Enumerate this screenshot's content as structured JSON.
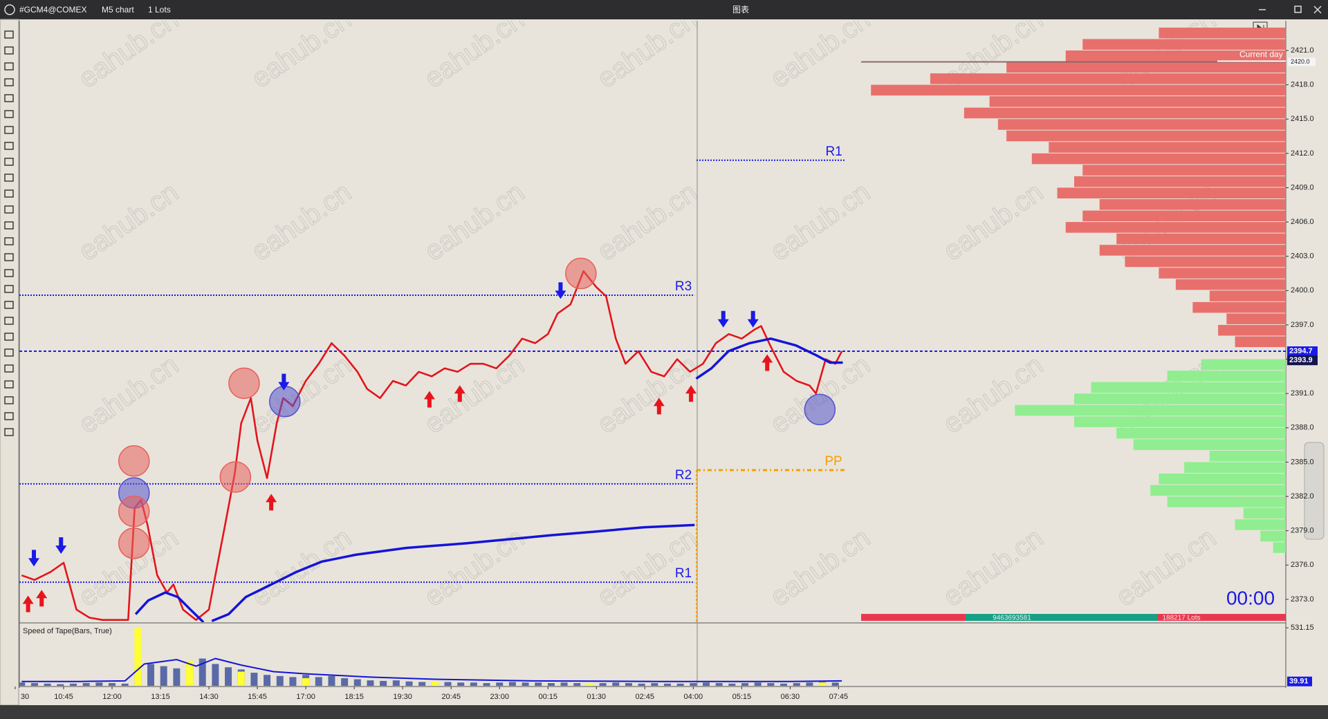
{
  "window": {
    "symbol": "#GCM4@COMEX",
    "timeframe": "M5 chart",
    "lots": "1 Lots",
    "title": "图表"
  },
  "watermark": "eahub.cn",
  "chart_data": {
    "type": "line",
    "xlim": [
      1.3,
      393.5
    ],
    "xticks": [
      {
        "value": 0,
        "label": "30"
      },
      {
        "value": 15,
        "label": "10:45"
      },
      {
        "value": 30,
        "label": "12:00"
      },
      {
        "value": 45,
        "label": "13:15"
      },
      {
        "value": 60,
        "label": "14:30"
      },
      {
        "value": 75,
        "label": "15:45"
      },
      {
        "value": 90,
        "label": "17:00"
      },
      {
        "value": 105,
        "label": "18:15"
      },
      {
        "value": 120,
        "label": "19:30"
      },
      {
        "value": 135,
        "label": "20:45"
      },
      {
        "value": 150,
        "label": "23:00"
      },
      {
        "value": 165,
        "label": "00:15"
      },
      {
        "value": 180,
        "label": "01:30"
      },
      {
        "value": 195,
        "label": "02:45"
      },
      {
        "value": 210,
        "label": "04:00"
      },
      {
        "value": 225,
        "label": "05:15"
      },
      {
        "value": 240,
        "label": "06:30"
      },
      {
        "value": 255,
        "label": "07:45"
      }
    ],
    "ylim": [
      2371.0,
      2423.6
    ],
    "yticks": [
      {
        "value": 2373,
        "label": "2373.0"
      },
      {
        "value": 2376,
        "label": "2376.0"
      },
      {
        "value": 2379,
        "label": "2379.0"
      },
      {
        "value": 2382,
        "label": "2382.0"
      },
      {
        "value": 2385,
        "label": "2385.0"
      },
      {
        "value": 2388,
        "label": "2388.0"
      },
      {
        "value": 2391,
        "label": "2391.0"
      },
      {
        "value": 2394,
        "label": "2394.0"
      },
      {
        "value": 2397,
        "label": "2397.0"
      },
      {
        "value": 2400,
        "label": "2400.0"
      },
      {
        "value": 2403,
        "label": "2403.0"
      },
      {
        "value": 2406,
        "label": "2406.0"
      },
      {
        "value": 2409,
        "label": "2409.0"
      },
      {
        "value": 2412,
        "label": "2412.0"
      },
      {
        "value": 2415,
        "label": "2415.0"
      },
      {
        "value": 2418,
        "label": "2418.0"
      },
      {
        "value": 2421,
        "label": "2421.0"
      }
    ],
    "grid": false,
    "series": [
      {
        "color": "#e3141c",
        "x": [
          2,
          6,
          11,
          15,
          19,
          23,
          27,
          31,
          35,
          37,
          39,
          41,
          44,
          47,
          49,
          52,
          56,
          60,
          62,
          65,
          68,
          70,
          73,
          75,
          78,
          81,
          83,
          86,
          90,
          94,
          98,
          102,
          106,
          109,
          113,
          117,
          121,
          125,
          129,
          133,
          137,
          141,
          145,
          149,
          153,
          157,
          161,
          165,
          168,
          172,
          176,
          180,
          183,
          186,
          189,
          193,
          197,
          201,
          205,
          209,
          213,
          217,
          221,
          225,
          229,
          231,
          234,
          238,
          242,
          246,
          248,
          251,
          254,
          256
        ],
        "values": [
          2375.1,
          2374.7,
          2375.4,
          2376.2,
          2372.1,
          2371.4,
          2371.2,
          2371.2,
          2371.2,
          2381.0,
          2381.7,
          2379.5,
          2375.1,
          2373.6,
          2374.3,
          2372.1,
          2371.2,
          2372.1,
          2375.1,
          2379.5,
          2384.0,
          2388.4,
          2390.6,
          2386.9,
          2383.6,
          2388.4,
          2390.6,
          2389.9,
          2392.1,
          2393.6,
          2395.4,
          2394.3,
          2392.9,
          2391.4,
          2390.6,
          2392.1,
          2391.7,
          2392.9,
          2392.5,
          2393.2,
          2392.9,
          2393.6,
          2393.6,
          2393.2,
          2394.3,
          2395.8,
          2395.4,
          2396.2,
          2398.0,
          2398.8,
          2401.7,
          2400.3,
          2399.5,
          2395.8,
          2393.6,
          2394.7,
          2392.9,
          2392.5,
          2394.0,
          2392.9,
          2393.6,
          2395.4,
          2396.2,
          2395.8,
          2396.6,
          2396.9,
          2395.1,
          2392.9,
          2392.1,
          2391.7,
          2391.0,
          2394.0,
          2393.6,
          2394.7
        ]
      },
      {
        "color": "#1414d8",
        "x": [
          37.3,
          41.2,
          46.5,
          50.4,
          54.3,
          58.3,
          null,
          60.9,
          66.1,
          71.4,
          79.3,
          87.1,
          95.0,
          105.5,
          121.2,
          139.6,
          165.8,
          178.9,
          194.6,
          210.4,
          null,
          210.9,
          215.6,
          220.9,
          227.4,
          234.0,
          241.8,
          248.4,
          252.3,
          256.3
        ],
        "values": [
          2371.7,
          2372.9,
          2373.6,
          2373.2,
          2372.1,
          2371.0,
          null,
          2371.1,
          2371.7,
          2373.2,
          2374.3,
          2375.4,
          2376.3,
          2376.9,
          2377.5,
          2377.9,
          2378.6,
          2378.9,
          2379.3,
          2379.5,
          null,
          2392.3,
          2393.2,
          2394.7,
          2395.4,
          2395.8,
          2395.2,
          2394.3,
          2393.7,
          2393.7
        ]
      }
    ],
    "levels": [
      {
        "label": "R3",
        "value": 2399.6,
        "x": [
          1.3,
          210.4
        ],
        "color": "#1a1ae6"
      },
      {
        "label": "R2",
        "value": 2383.1,
        "x": [
          1.3,
          210.4
        ],
        "color": "#1a1ae6"
      },
      {
        "label": "R1",
        "value": 2374.5,
        "x": [
          1.3,
          210.4
        ],
        "color": "#1a1ae6"
      },
      {
        "label": "R1",
        "value": 2411.4,
        "x": [
          211,
          257
        ],
        "color": "#1a1ae6"
      },
      {
        "label": "PP",
        "value": 2384.3,
        "x": [
          211,
          257
        ],
        "color": "#f5a000"
      }
    ],
    "current_prices": [
      {
        "value": 2394.7,
        "color": "#1a1ae6"
      },
      {
        "value": 2393.9,
        "color": "#141450"
      }
    ],
    "current_day": {
      "label": "Current day",
      "x": [
        262,
        393.5
      ],
      "tick": {
        "value": 2420,
        "label": "2420.0"
      }
    },
    "up_arrows": {
      "color": "#e8141c",
      "x": [
        4.0,
        8.2,
        79.3,
        128.3,
        137.7,
        199.4,
        209.3,
        232.9
      ],
      "values": [
        2372.6,
        2373.1,
        2381.5,
        2390.5,
        2391.0,
        2389.9,
        2391.0,
        2393.7
      ]
    },
    "down_arrows": {
      "color": "#1a1ae6",
      "x": [
        5.8,
        14.2,
        83.2,
        168.9,
        219.3,
        228.5
      ],
      "values": [
        2376.6,
        2377.7,
        2392.0,
        2400.0,
        2397.5,
        2397.5
      ]
    },
    "circles": {
      "x": [
        36.8,
        36.8,
        36.8,
        36.8,
        68.2,
        70.9,
        83.5,
        175.2,
        249.2
      ],
      "values": [
        2385.1,
        2382.3,
        2380.7,
        2377.9,
        2383.7,
        2391.9,
        2390.3,
        2401.5,
        2389.6
      ],
      "colors": [
        "#e8605c",
        "#5555cc",
        "#e8605c",
        "#e8605c",
        "#e8605c",
        "#e8605c",
        "#5555cc",
        "#e8605c",
        "#5555cc"
      ]
    },
    "volume_profile": {
      "xlim": [
        0,
        500
      ],
      "sell": {
        "color": "#e8706c",
        "prices": [
          2422.5,
          2421.5,
          2420.5,
          2419.5,
          2418.5,
          2417.5,
          2416.5,
          2415.5,
          2414.5,
          2413.5,
          2412.5,
          2411.5,
          2410.5,
          2409.5,
          2408.5,
          2407.5,
          2406.5,
          2405.5,
          2404.5,
          2403.5,
          2402.5,
          2401.5,
          2400.5,
          2399.5,
          2398.5,
          2397.5,
          2396.5,
          2395.5
        ],
        "values": [
          150,
          240,
          260,
          330,
          420,
          490,
          350,
          380,
          340,
          330,
          280,
          300,
          240,
          250,
          270,
          220,
          240,
          260,
          200,
          220,
          190,
          150,
          130,
          90,
          110,
          70,
          80,
          60
        ]
      },
      "buy": {
        "color": "#90ee90",
        "prices": [
          2393.5,
          2392.5,
          2391.5,
          2390.5,
          2389.5,
          2388.5,
          2387.5,
          2386.5,
          2385.5,
          2384.5,
          2383.5,
          2382.5,
          2381.5,
          2380.5,
          2379.5,
          2378.5,
          2377.5
        ],
        "values": [
          100,
          140,
          230,
          250,
          320,
          250,
          200,
          180,
          90,
          120,
          150,
          160,
          140,
          50,
          60,
          30,
          15
        ]
      }
    },
    "timer": "00:00",
    "profile_footer": {
      "left": "9463693581",
      "right": "188217 Lots"
    },
    "indicator": {
      "title": "Speed of Tape(Bars, True)",
      "ylim": [
        0,
        570
      ],
      "yticks": [
        531.15
      ],
      "current": 39.91,
      "series": [
        {
          "type": "bar",
          "color": "#5a6aa8",
          "x": [
            2,
            6,
            10,
            14,
            18,
            22,
            26,
            30,
            34,
            38,
            42,
            46,
            50,
            54,
            58,
            62,
            66,
            70,
            74,
            78,
            82,
            86,
            90,
            94,
            98,
            102,
            106,
            110,
            114,
            118,
            122,
            126,
            130,
            134,
            138,
            142,
            146,
            150,
            154,
            158,
            162,
            166,
            170,
            174,
            178,
            182,
            186,
            190,
            194,
            198,
            202,
            206,
            210,
            214,
            218,
            222,
            226,
            230,
            234,
            238,
            242,
            246,
            250,
            254
          ],
          "values": [
            30,
            25,
            20,
            15,
            20,
            25,
            30,
            25,
            20,
            150,
            200,
            180,
            160,
            220,
            250,
            200,
            170,
            150,
            120,
            100,
            90,
            80,
            100,
            80,
            90,
            70,
            60,
            50,
            45,
            50,
            40,
            35,
            30,
            35,
            30,
            30,
            25,
            30,
            35,
            30,
            30,
            25,
            30,
            25,
            20,
            25,
            30,
            25,
            20,
            25,
            20,
            20,
            25,
            30,
            25,
            20,
            25,
            30,
            25,
            20,
            25,
            30,
            35,
            30
          ]
        },
        {
          "type": "bar",
          "color": "#ffff33",
          "x": [
            38,
            54,
            70,
            90,
            130,
            178,
            250
          ],
          "values": [
            530,
            230,
            130,
            70,
            40,
            25,
            30
          ]
        },
        {
          "type": "line",
          "color": "#1414d8",
          "x": [
            2,
            20,
            34,
            40,
            50,
            56,
            62,
            70,
            80,
            90,
            110,
            130,
            160,
            200,
            240,
            256
          ],
          "values": [
            40,
            40,
            45,
            200,
            240,
            180,
            250,
            190,
            130,
            110,
            80,
            60,
            45,
            40,
            40,
            45
          ]
        }
      ]
    }
  }
}
